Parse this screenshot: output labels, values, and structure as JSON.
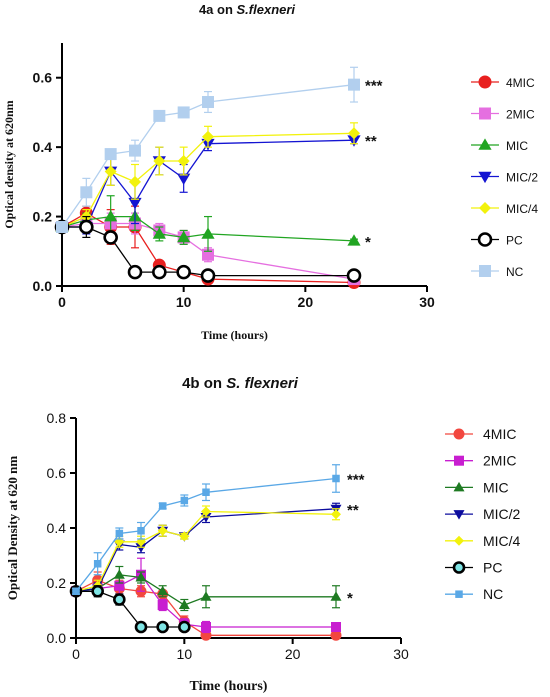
{
  "chart_data": [
    {
      "type": "line",
      "title_prefix": "4a on ",
      "title_species": "S.flexneri",
      "xlabel": "Time (hours)",
      "ylabel": "Optical density at 620nm",
      "xlim": [
        0,
        30
      ],
      "ylim": [
        0,
        0.7
      ],
      "xticks": [
        0,
        10,
        20,
        30
      ],
      "yticks": [
        0.0,
        0.2,
        0.4,
        0.6
      ],
      "x_tick_labels": [
        "0",
        "10",
        "20",
        "30"
      ],
      "y_tick_labels": [
        "0.0",
        "0.2",
        "0.4",
        "0.6"
      ],
      "x": [
        0,
        2,
        4,
        6,
        8,
        10,
        12,
        24
      ],
      "legend": "right",
      "series": [
        {
          "name": "4MIC",
          "color": "#e8201f",
          "marker": "circle",
          "values": [
            0.17,
            0.21,
            0.17,
            0.17,
            0.06,
            0.04,
            0.02,
            0.01
          ],
          "errors": [
            0.01,
            0.02,
            0.05,
            0.06,
            0.01,
            0.01,
            0.01,
            0.005
          ]
        },
        {
          "name": "2MIC",
          "color": "#e56fe0",
          "marker": "square",
          "values": [
            0.17,
            0.18,
            0.18,
            0.18,
            0.16,
            0.14,
            0.09,
            0.02
          ],
          "errors": [
            0.01,
            0.02,
            0.03,
            0.03,
            0.02,
            0.02,
            0.02,
            0.005
          ]
        },
        {
          "name": "MIC",
          "color": "#21a522",
          "marker": "triangle-up",
          "values": [
            0.17,
            0.19,
            0.2,
            0.2,
            0.15,
            0.14,
            0.15,
            0.13
          ],
          "errors": [
            0.01,
            0.02,
            0.06,
            0.04,
            0.02,
            0.02,
            0.05,
            0.005
          ]
        },
        {
          "name": "MIC/2",
          "color": "#1414d2",
          "marker": "triangle-down",
          "values": [
            0.17,
            0.17,
            0.33,
            0.24,
            0.36,
            0.31,
            0.41,
            0.42
          ],
          "errors": [
            0.01,
            0.02,
            0.04,
            0.06,
            0.04,
            0.04,
            0.02,
            0.01
          ]
        },
        {
          "name": "MIC/4",
          "color": "#f2f20c",
          "marker": "diamond",
          "values": [
            0.17,
            0.2,
            0.33,
            0.3,
            0.36,
            0.36,
            0.43,
            0.44
          ],
          "errors": [
            0.01,
            0.02,
            0.04,
            0.05,
            0.04,
            0.04,
            0.03,
            0.03
          ]
        },
        {
          "name": "PC",
          "color": "#000000",
          "marker": "ring",
          "values": [
            0.17,
            0.17,
            0.14,
            0.04,
            0.04,
            0.04,
            0.03,
            0.03
          ],
          "errors": [
            0.01,
            0.03,
            0.01,
            0.01,
            0.005,
            0.005,
            0.005,
            0.005
          ]
        },
        {
          "name": "NC",
          "color": "#b2cfee",
          "marker": "square",
          "values": [
            0.17,
            0.27,
            0.38,
            0.39,
            0.49,
            0.5,
            0.53,
            0.58
          ],
          "errors": [
            0.01,
            0.04,
            0.01,
            0.03,
            0.01,
            0.01,
            0.03,
            0.05
          ]
        }
      ],
      "annotations": [
        {
          "series": "NC",
          "text": "***"
        },
        {
          "series": "MIC/2",
          "text": "**"
        },
        {
          "series": "MIC",
          "text": "*"
        }
      ]
    },
    {
      "type": "line",
      "title_prefix": "4b on ",
      "title_species": "S. flexneri",
      "xlabel": "Time (hours)",
      "ylabel": "Optical Density at 620 nm",
      "xlim": [
        0,
        30
      ],
      "ylim": [
        0,
        0.8
      ],
      "xticks": [
        0,
        10,
        20,
        30
      ],
      "yticks": [
        0.0,
        0.2,
        0.4,
        0.6,
        0.8
      ],
      "x_tick_labels": [
        "0",
        "10",
        "20",
        "30"
      ],
      "y_tick_labels": [
        "0.0",
        "0.2",
        "0.4",
        "0.6",
        "0.8"
      ],
      "x": [
        0,
        2,
        4,
        6,
        8,
        10,
        12,
        24
      ],
      "legend": "right",
      "series": [
        {
          "name": "4MIC",
          "color": "#f2473f",
          "marker": "circle",
          "values": [
            0.17,
            0.21,
            0.18,
            0.17,
            0.16,
            0.06,
            0.01,
            0.01
          ],
          "errors": [
            0.01,
            0.03,
            0.03,
            0.02,
            0.01,
            0.02,
            0.01,
            0.005
          ]
        },
        {
          "name": "2MIC",
          "color": "#c81ed0",
          "marker": "square",
          "values": [
            0.17,
            0.18,
            0.19,
            0.23,
            0.12,
            0.05,
            0.04,
            0.04
          ],
          "errors": [
            0.01,
            0.02,
            0.03,
            0.06,
            0.02,
            0.02,
            0.02,
            0.005
          ]
        },
        {
          "name": "MIC",
          "color": "#1e7a22",
          "marker": "triangle-up",
          "values": [
            0.17,
            0.18,
            0.23,
            0.22,
            0.17,
            0.12,
            0.15,
            0.15
          ],
          "errors": [
            0.01,
            0.02,
            0.03,
            0.02,
            0.02,
            0.02,
            0.04,
            0.04
          ]
        },
        {
          "name": "MIC/2",
          "color": "#0c0c9e",
          "marker": "triangle-down",
          "values": [
            0.17,
            0.18,
            0.34,
            0.33,
            0.39,
            0.37,
            0.44,
            0.47
          ],
          "errors": [
            0.01,
            0.02,
            0.02,
            0.02,
            0.02,
            0.01,
            0.02,
            0.02
          ]
        },
        {
          "name": "MIC/4",
          "color": "#f2f20c",
          "marker": "diamond",
          "values": [
            0.17,
            0.19,
            0.35,
            0.35,
            0.39,
            0.37,
            0.46,
            0.45
          ],
          "errors": [
            0.01,
            0.02,
            0.02,
            0.02,
            0.02,
            0.01,
            0.02,
            0.02
          ]
        },
        {
          "name": "PC",
          "color": "#000000",
          "marker": "ring",
          "fill": "#7fe5e5",
          "values": [
            0.17,
            0.17,
            0.14,
            0.04,
            0.04,
            0.04,
            null,
            null
          ],
          "errors": [
            0.01,
            0.02,
            0.02,
            0.005,
            0.005,
            0.005,
            null,
            null
          ]
        },
        {
          "name": "NC",
          "color": "#5aa8e6",
          "marker": "square-small",
          "values": [
            0.17,
            0.27,
            0.38,
            0.39,
            0.48,
            0.5,
            0.53,
            0.58
          ],
          "errors": [
            0.01,
            0.04,
            0.02,
            0.03,
            0.01,
            0.02,
            0.03,
            0.05
          ]
        }
      ],
      "annotations": [
        {
          "series": "NC",
          "text": "***"
        },
        {
          "series": "MIC/2",
          "text": "**"
        },
        {
          "series": "MIC",
          "text": "*"
        }
      ]
    }
  ]
}
